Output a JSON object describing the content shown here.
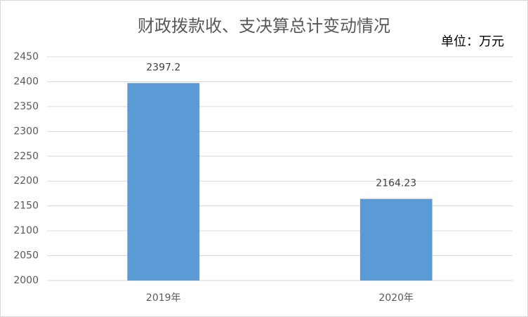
{
  "chart_data": {
    "type": "bar",
    "title": "财政拨款收、支决算总计变动情况",
    "annotation": "单位：万元",
    "categories": [
      "2019年",
      "2020年"
    ],
    "values": [
      2397.2,
      2164.23
    ],
    "color": "#5b9bd5",
    "ylim": [
      2000,
      2450
    ],
    "yticks": [
      2000,
      2050,
      2100,
      2150,
      2200,
      2250,
      2300,
      2350,
      2400,
      2450
    ],
    "grid": true
  }
}
